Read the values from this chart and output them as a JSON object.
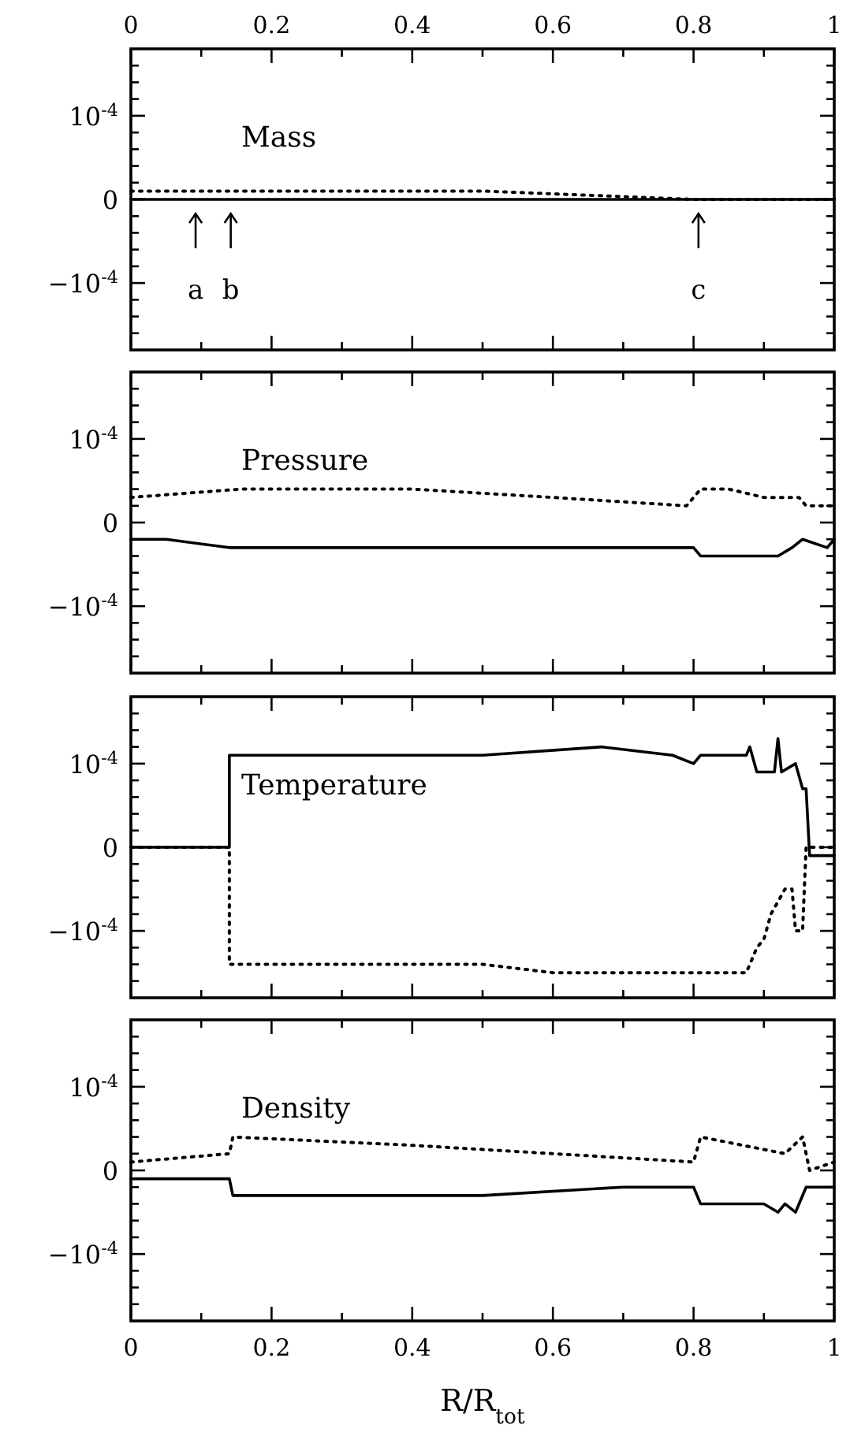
{
  "chart_data": [
    {
      "type": "line",
      "title": "Mass",
      "xlim": [
        0,
        1
      ],
      "ylim": [
        -0.00018,
        0.00018
      ],
      "tick_labels": "y",
      "x2lim": [
        0,
        1
      ],
      "x2ticks": [
        0,
        {
          "value": 0.1,
          "label": null
        },
        0.2,
        {
          "value": 0.3,
          "label": null
        },
        0.4,
        {
          "value": 0.5,
          "label": null
        },
        0.6,
        {
          "value": 0.7,
          "label": null
        },
        0.8,
        {
          "value": 0.9,
          "label": null
        },
        1
      ],
      "xticks": [
        {
          "value": 0,
          "label": null
        },
        {
          "value": 0.1,
          "label": null
        },
        {
          "value": 0.2,
          "label": null
        },
        {
          "value": 0.3,
          "label": null
        },
        {
          "value": 0.4,
          "label": null
        },
        {
          "value": 0.5,
          "label": null
        },
        {
          "value": 0.6,
          "label": null
        },
        {
          "value": 0.7,
          "label": null
        },
        {
          "value": 0.8,
          "label": null
        },
        {
          "value": 0.9,
          "label": null
        },
        {
          "value": 1,
          "label": null
        }
      ],
      "yticks": [
        {
          "value": -0.00016,
          "label": null
        },
        {
          "value": -0.00014,
          "label": null
        },
        {
          "value": -0.00012,
          "label": null
        },
        {
          "value": -0.0001,
          "label": "−10$^{-4}$"
        },
        {
          "value": -8e-05,
          "label": null
        },
        {
          "value": -6e-05,
          "label": null
        },
        {
          "value": -4e-05,
          "label": null
        },
        {
          "value": -2e-05,
          "label": null
        },
        {
          "value": 0,
          "label": "0"
        },
        {
          "value": 2e-05,
          "label": null
        },
        {
          "value": 4e-05,
          "label": null
        },
        {
          "value": 6e-05,
          "label": null
        },
        {
          "value": 8e-05,
          "label": null
        },
        {
          "value": 0.0001,
          "label": "10$^{-4}$"
        },
        {
          "value": 0.00012,
          "label": null
        },
        {
          "value": 0.00014,
          "label": null
        },
        {
          "value": 0.00016,
          "label": null
        }
      ],
      "series": [
        {
          "color": "#000000",
          "line_style": "solid",
          "x": [
            0,
            1
          ],
          "values": [
            0,
            0
          ]
        },
        {
          "color": "#000000",
          "line_style": "dotted",
          "x": [
            0,
            0.15,
            0.5,
            0.8,
            1
          ],
          "values": [
            1e-05,
            1e-05,
            1e-05,
            0,
            0
          ]
        }
      ],
      "annotations": [
        {
          "text": "a",
          "x": 0.092,
          "y": 0
        },
        {
          "text": "b",
          "x": 0.142,
          "y": 0
        },
        {
          "text": "c",
          "x": 0.807,
          "y": 0
        }
      ]
    },
    {
      "type": "line",
      "title": "Pressure",
      "xlim": [
        0,
        1
      ],
      "ylim": [
        -0.00018,
        0.00018
      ],
      "tick_labels": "y",
      "xticks": [
        {
          "value": 0,
          "label": null
        },
        {
          "value": 0.1,
          "label": null
        },
        {
          "value": 0.2,
          "label": null
        },
        {
          "value": 0.3,
          "label": null
        },
        {
          "value": 0.4,
          "label": null
        },
        {
          "value": 0.5,
          "label": null
        },
        {
          "value": 0.6,
          "label": null
        },
        {
          "value": 0.7,
          "label": null
        },
        {
          "value": 0.8,
          "label": null
        },
        {
          "value": 0.9,
          "label": null
        },
        {
          "value": 1,
          "label": null
        }
      ],
      "yticks": [
        {
          "value": -0.00016,
          "label": null
        },
        {
          "value": -0.00014,
          "label": null
        },
        {
          "value": -0.00012,
          "label": null
        },
        {
          "value": -0.0001,
          "label": "−10$^{-4}$"
        },
        {
          "value": -8e-05,
          "label": null
        },
        {
          "value": -6e-05,
          "label": null
        },
        {
          "value": -4e-05,
          "label": null
        },
        {
          "value": -2e-05,
          "label": null
        },
        {
          "value": 0,
          "label": "0"
        },
        {
          "value": 2e-05,
          "label": null
        },
        {
          "value": 4e-05,
          "label": null
        },
        {
          "value": 6e-05,
          "label": null
        },
        {
          "value": 8e-05,
          "label": null
        },
        {
          "value": 0.0001,
          "label": "10$^{-4}$"
        },
        {
          "value": 0.00012,
          "label": null
        },
        {
          "value": 0.00014,
          "label": null
        },
        {
          "value": 0.00016,
          "label": null
        }
      ],
      "series": [
        {
          "color": "#000000",
          "line_style": "solid",
          "x": [
            0,
            0.05,
            0.14,
            0.16,
            0.4,
            0.6,
            0.8,
            0.81,
            0.9,
            0.92,
            0.94,
            0.955,
            0.99,
            1
          ],
          "values": [
            -2e-05,
            -2e-05,
            -3e-05,
            -3e-05,
            -3e-05,
            -3e-05,
            -3e-05,
            -4e-05,
            -4e-05,
            -4e-05,
            -3e-05,
            -2e-05,
            -3e-05,
            -2e-05
          ]
        },
        {
          "color": "#000000",
          "line_style": "dotted",
          "x": [
            0,
            0.157,
            0.2,
            0.4,
            0.6,
            0.79,
            0.81,
            0.85,
            0.9,
            0.95,
            0.96,
            1
          ],
          "values": [
            3e-05,
            4e-05,
            4e-05,
            4e-05,
            3e-05,
            2e-05,
            4e-05,
            4e-05,
            3e-05,
            3e-05,
            2e-05,
            2e-05
          ]
        }
      ]
    },
    {
      "type": "line",
      "title": "Temperature",
      "xlim": [
        0,
        1
      ],
      "ylim": [
        -0.00018,
        0.00018
      ],
      "tick_labels": "y",
      "xticks": [
        {
          "value": 0,
          "label": null
        },
        {
          "value": 0.1,
          "label": null
        },
        {
          "value": 0.2,
          "label": null
        },
        {
          "value": 0.3,
          "label": null
        },
        {
          "value": 0.4,
          "label": null
        },
        {
          "value": 0.5,
          "label": null
        },
        {
          "value": 0.6,
          "label": null
        },
        {
          "value": 0.7,
          "label": null
        },
        {
          "value": 0.8,
          "label": null
        },
        {
          "value": 0.9,
          "label": null
        },
        {
          "value": 1,
          "label": null
        }
      ],
      "yticks": [
        {
          "value": -0.00016,
          "label": null
        },
        {
          "value": -0.00014,
          "label": null
        },
        {
          "value": -0.00012,
          "label": null
        },
        {
          "value": -0.0001,
          "label": "−10$^{-4}$"
        },
        {
          "value": -8e-05,
          "label": null
        },
        {
          "value": -6e-05,
          "label": null
        },
        {
          "value": -4e-05,
          "label": null
        },
        {
          "value": -2e-05,
          "label": null
        },
        {
          "value": 0,
          "label": "0"
        },
        {
          "value": 2e-05,
          "label": null
        },
        {
          "value": 4e-05,
          "label": null
        },
        {
          "value": 6e-05,
          "label": null
        },
        {
          "value": 8e-05,
          "label": null
        },
        {
          "value": 0.0001,
          "label": "10$^{-4}$"
        },
        {
          "value": 0.00012,
          "label": null
        },
        {
          "value": 0.00014,
          "label": null
        },
        {
          "value": 0.00016,
          "label": null
        }
      ],
      "series": [
        {
          "color": "#000000",
          "line_style": "solid",
          "x": [
            0,
            0.14,
            0.14,
            0.3,
            0.5,
            0.67,
            0.77,
            0.8,
            0.81,
            0.875,
            0.88,
            0.89,
            0.905,
            0.915,
            0.92,
            0.925,
            0.945,
            0.955,
            0.96,
            0.965,
            1
          ],
          "values": [
            0,
            0,
            0.00011,
            0.00011,
            0.00011,
            0.00012,
            0.00011,
            0.0001,
            0.00011,
            0.00011,
            0.00012,
            9e-05,
            9e-05,
            9e-05,
            0.00013,
            9e-05,
            0.0001,
            7e-05,
            7e-05,
            -1e-05,
            -1e-05
          ]
        },
        {
          "color": "#000000",
          "line_style": "dotted",
          "x": [
            0,
            0.14,
            0.14,
            0.3,
            0.5,
            0.6,
            0.7,
            0.79,
            0.81,
            0.875,
            0.89,
            0.9,
            0.91,
            0.93,
            0.94,
            0.945,
            0.955,
            0.96,
            1
          ],
          "values": [
            0,
            0,
            -0.00014,
            -0.00014,
            -0.00014,
            -0.00015,
            -0.00015,
            -0.00015,
            -0.00015,
            -0.00015,
            -0.00012,
            -0.00011,
            -8e-05,
            -5e-05,
            -5e-05,
            -0.0001,
            -0.0001,
            0,
            0
          ]
        }
      ]
    },
    {
      "type": "line",
      "title": "Density",
      "xlabel": "R/R$_{tot}$",
      "xlim": [
        0,
        1
      ],
      "ylim": [
        -0.00018,
        0.00018
      ],
      "xticks": [
        0,
        {
          "value": 0.1,
          "label": null
        },
        0.2,
        {
          "value": 0.3,
          "label": null
        },
        0.4,
        {
          "value": 0.5,
          "label": null
        },
        0.6,
        {
          "value": 0.7,
          "label": null
        },
        0.8,
        {
          "value": 0.9,
          "label": null
        },
        1
      ],
      "yticks": [
        {
          "value": -0.00016,
          "label": null
        },
        {
          "value": -0.00014,
          "label": null
        },
        {
          "value": -0.00012,
          "label": null
        },
        {
          "value": -0.0001,
          "label": "−10$^{-4}$"
        },
        {
          "value": -8e-05,
          "label": null
        },
        {
          "value": -6e-05,
          "label": null
        },
        {
          "value": -4e-05,
          "label": null
        },
        {
          "value": -2e-05,
          "label": null
        },
        {
          "value": 0,
          "label": "0"
        },
        {
          "value": 2e-05,
          "label": null
        },
        {
          "value": 4e-05,
          "label": null
        },
        {
          "value": 6e-05,
          "label": null
        },
        {
          "value": 8e-05,
          "label": null
        },
        {
          "value": 0.0001,
          "label": "10$^{-4}$"
        },
        {
          "value": 0.00012,
          "label": null
        },
        {
          "value": 0.00014,
          "label": null
        },
        {
          "value": 0.00016,
          "label": null
        }
      ],
      "series": [
        {
          "color": "#000000",
          "line_style": "solid",
          "x": [
            0,
            0.05,
            0.14,
            0.145,
            0.3,
            0.5,
            0.7,
            0.8,
            0.81,
            0.87,
            0.9,
            0.92,
            0.93,
            0.945,
            0.95,
            0.96,
            1
          ],
          "values": [
            -1e-05,
            -1e-05,
            -1e-05,
            -3e-05,
            -3e-05,
            -3e-05,
            -2e-05,
            -2e-05,
            -4e-05,
            -4e-05,
            -4e-05,
            -5e-05,
            -4e-05,
            -5e-05,
            -4e-05,
            -2e-05,
            -2e-05
          ]
        },
        {
          "color": "#000000",
          "line_style": "dotted",
          "x": [
            0,
            0.14,
            0.145,
            0.4,
            0.6,
            0.8,
            0.81,
            0.87,
            0.93,
            0.955,
            0.965,
            1
          ],
          "values": [
            1e-05,
            2e-05,
            4e-05,
            3e-05,
            2e-05,
            1e-05,
            4e-05,
            3e-05,
            2e-05,
            4e-05,
            0,
            1e-05
          ]
        }
      ]
    }
  ]
}
